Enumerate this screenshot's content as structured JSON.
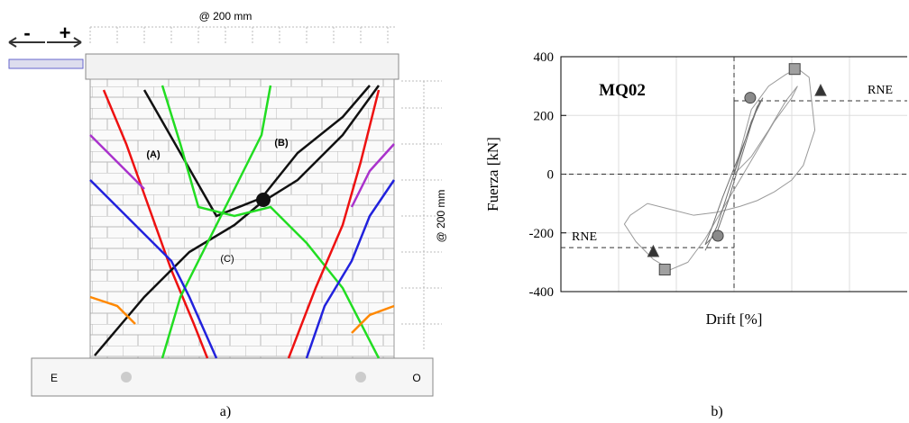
{
  "diagram": {
    "spacing_top": "@ 200 mm",
    "spacing_side": "@ 200 mm",
    "minus": "-",
    "plus": "+",
    "crack_a": "(A)",
    "crack_b": "(B)",
    "crack_c": "(C)",
    "side_left": "E",
    "side_right": "O"
  },
  "captions": [
    "a)",
    "b)"
  ],
  "chart_data": {
    "type": "line",
    "annotation": "MQ02",
    "xlabel": "Drift [%]",
    "ylabel": "Fuerza [kN]",
    "xlim": [
      -3,
      3
    ],
    "ylim": [
      -400,
      400
    ],
    "yticks": [
      -400,
      -200,
      0,
      200,
      400
    ],
    "xgrid": [
      -2,
      -1,
      0,
      1,
      2
    ],
    "grid": true,
    "series": [
      {
        "color": "#9a9a9a",
        "x": [
          0,
          0.3,
          0.6,
          0.9,
          1.1,
          1.3,
          1.4,
          1.2,
          1.0,
          0.7,
          0.4,
          0.1,
          -0.3,
          -0.7,
          -1.1,
          -1.5,
          -1.8,
          -1.9,
          -1.7,
          -1.4,
          -1.1,
          -0.8,
          -0.5,
          -0.2,
          0.1,
          0.4,
          0.7,
          1.0,
          1.1,
          0.9,
          0.6,
          0.3,
          0
        ],
        "values": [
          0,
          220,
          300,
          340,
          360,
          330,
          150,
          30,
          -20,
          -60,
          -90,
          -110,
          -130,
          -140,
          -120,
          -100,
          -140,
          -170,
          -230,
          -290,
          -325,
          -300,
          -220,
          -120,
          -20,
          80,
          180,
          260,
          300,
          250,
          150,
          60,
          0
        ]
      },
      {
        "color": "#707070",
        "x": [
          -0.5,
          -0.3,
          -0.1,
          0.1,
          0.3,
          0.5,
          0.4,
          0.2,
          0,
          -0.2,
          -0.4,
          -0.5,
          -0.3,
          -0.1,
          0.1,
          0.3,
          0.45
        ],
        "values": [
          -260,
          -180,
          -60,
          60,
          180,
          260,
          230,
          120,
          20,
          -80,
          -190,
          -240,
          -200,
          -90,
          40,
          170,
          250
        ]
      }
    ],
    "markers": [
      {
        "shape": "square",
        "color": "#a0a0a0",
        "x": [
          1.05,
          -1.2
        ],
        "values": [
          358,
          -325
        ]
      },
      {
        "shape": "circle",
        "color": "#8a8a8a",
        "x": [
          0.28,
          -0.28
        ],
        "values": [
          260,
          -210
        ]
      },
      {
        "shape": "triangle",
        "color": "#333333",
        "x": [
          1.5,
          -1.4
        ],
        "values": [
          283,
          -265
        ]
      }
    ],
    "reference_lines": [
      {
        "label": "RNE",
        "value": 250
      },
      {
        "label": "RNE",
        "value": -250
      }
    ]
  }
}
